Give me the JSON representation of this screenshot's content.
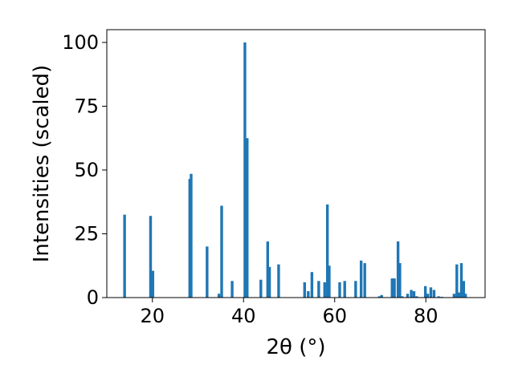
{
  "chart_data": {
    "type": "bar",
    "xlabel": "2θ (°)",
    "ylabel": "Intensities (scaled)",
    "xlim": [
      10,
      93
    ],
    "ylim": [
      0,
      105
    ],
    "xticks": [
      20,
      40,
      60,
      80
    ],
    "yticks": [
      0,
      25,
      50,
      75,
      100
    ],
    "grid": false,
    "bar_color": "#1f77b4",
    "bar_width": 0.6,
    "x": [
      13.9,
      19.6,
      20.1,
      28.2,
      28.5,
      32.0,
      34.6,
      35.2,
      37.5,
      40.3,
      40.8,
      43.8,
      45.3,
      45.7,
      47.7,
      53.4,
      54.2,
      55.0,
      56.5,
      57.8,
      58.4,
      58.8,
      61.1,
      62.2,
      64.6,
      65.8,
      66.6,
      69.8,
      70.3,
      72.6,
      73.1,
      73.9,
      74.3,
      74.8,
      76.0,
      76.8,
      77.4,
      78.0,
      79.9,
      80.4,
      81.1,
      81.8,
      82.8,
      83.5,
      86.2,
      86.8,
      87.3,
      87.8,
      88.3,
      88.7
    ],
    "values": [
      32.5,
      32.0,
      10.5,
      46.5,
      48.5,
      20.0,
      1.5,
      36.0,
      6.5,
      100.0,
      62.5,
      7.0,
      22.0,
      12.0,
      13.0,
      6.0,
      2.5,
      10.0,
      6.5,
      6.0,
      36.5,
      12.5,
      6.0,
      6.5,
      6.5,
      14.5,
      13.5,
      0.5,
      1.0,
      7.5,
      7.5,
      22.0,
      13.5,
      0.5,
      1.5,
      3.0,
      2.5,
      0.5,
      4.5,
      1.5,
      4.0,
      3.0,
      0.5,
      0.3,
      1.5,
      13.0,
      2.0,
      13.5,
      6.5,
      1.5
    ]
  }
}
